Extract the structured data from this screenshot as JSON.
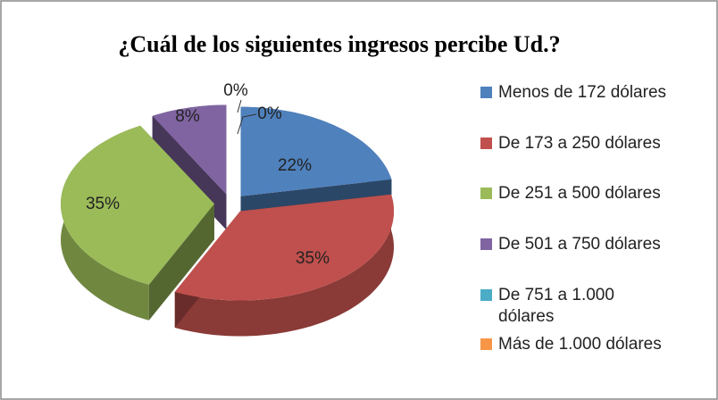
{
  "chart_data": {
    "type": "pie3d",
    "title": "¿Cuál de los siguientes ingresos percibe Ud.?",
    "categories": [
      "Menos de 172 dólares",
      "De 173 a 250 dólares",
      "De 251 a 500 dólares",
      "De 501 a 750 dólares",
      "De 751 a 1.000 dólares",
      "Más de 1.000 dólares"
    ],
    "values": [
      22,
      35,
      35,
      8,
      0,
      0
    ],
    "value_labels": [
      "22%",
      "35%",
      "35%",
      "8%",
      "0%",
      "0%"
    ],
    "colors": [
      "#4f81bd",
      "#c0504d",
      "#9bbb59",
      "#8064a2",
      "#4bacc6",
      "#f79646"
    ],
    "legend": "right"
  }
}
